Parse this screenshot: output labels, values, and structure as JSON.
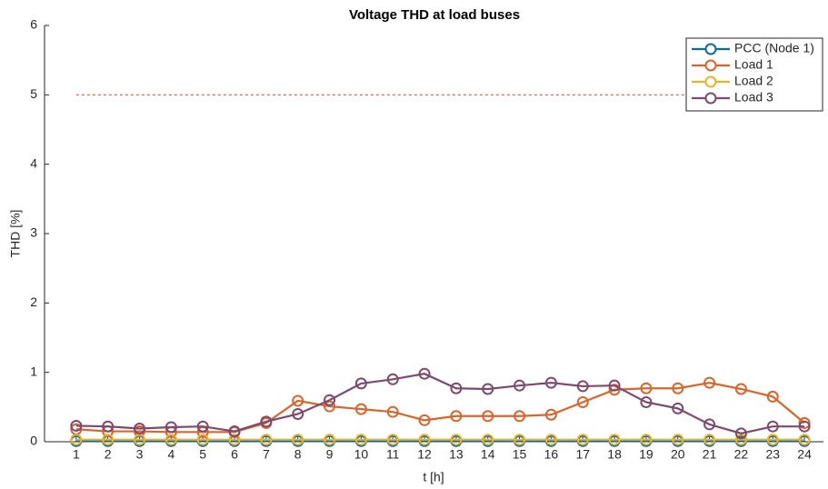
{
  "chart_data": {
    "type": "line",
    "title": "Voltage THD at load buses",
    "x_label": "t [h]",
    "y_label": "THD [%]",
    "x": [
      1,
      2,
      3,
      4,
      5,
      6,
      7,
      8,
      9,
      10,
      11,
      12,
      13,
      14,
      15,
      16,
      17,
      18,
      19,
      20,
      21,
      22,
      23,
      24
    ],
    "xlim": [
      0,
      24.6
    ],
    "xticks": [
      1,
      2,
      3,
      4,
      5,
      6,
      7,
      8,
      9,
      10,
      11,
      12,
      13,
      14,
      15,
      16,
      17,
      18,
      19,
      20,
      21,
      22,
      23,
      24
    ],
    "ylim": [
      0,
      6
    ],
    "yticks": [
      0,
      1,
      2,
      3,
      4,
      5,
      6
    ],
    "threshold": {
      "value": 5,
      "color": "#e8513a"
    },
    "legend": "top-right",
    "series": [
      {
        "name": "PCC (Node 1)",
        "color": "#0f6a9e",
        "values": [
          0.01,
          0.01,
          0.01,
          0.01,
          0.01,
          0.01,
          0.01,
          0.01,
          0.01,
          0.01,
          0.01,
          0.01,
          0.01,
          0.01,
          0.01,
          0.01,
          0.01,
          0.01,
          0.01,
          0.01,
          0.01,
          0.01,
          0.01,
          0.01
        ]
      },
      {
        "name": "Load 1",
        "color": "#d9652b",
        "values": [
          0.18,
          0.15,
          0.15,
          0.14,
          0.14,
          0.14,
          0.27,
          0.59,
          0.51,
          0.47,
          0.43,
          0.31,
          0.37,
          0.37,
          0.37,
          0.39,
          0.57,
          0.75,
          0.77,
          0.77,
          0.85,
          0.76,
          0.65,
          0.27
        ]
      },
      {
        "name": "Load 2",
        "color": "#eab22e",
        "values": [
          0.03,
          0.03,
          0.03,
          0.03,
          0.03,
          0.03,
          0.03,
          0.03,
          0.03,
          0.03,
          0.03,
          0.03,
          0.03,
          0.03,
          0.03,
          0.03,
          0.03,
          0.03,
          0.03,
          0.03,
          0.03,
          0.03,
          0.03,
          0.03
        ]
      },
      {
        "name": "Load 3",
        "color": "#7e4a6e",
        "values": [
          0.23,
          0.22,
          0.19,
          0.21,
          0.22,
          0.15,
          0.29,
          0.4,
          0.6,
          0.84,
          0.9,
          0.98,
          0.77,
          0.76,
          0.81,
          0.85,
          0.8,
          0.81,
          0.57,
          0.48,
          0.25,
          0.12,
          0.22,
          0.22
        ]
      }
    ]
  }
}
